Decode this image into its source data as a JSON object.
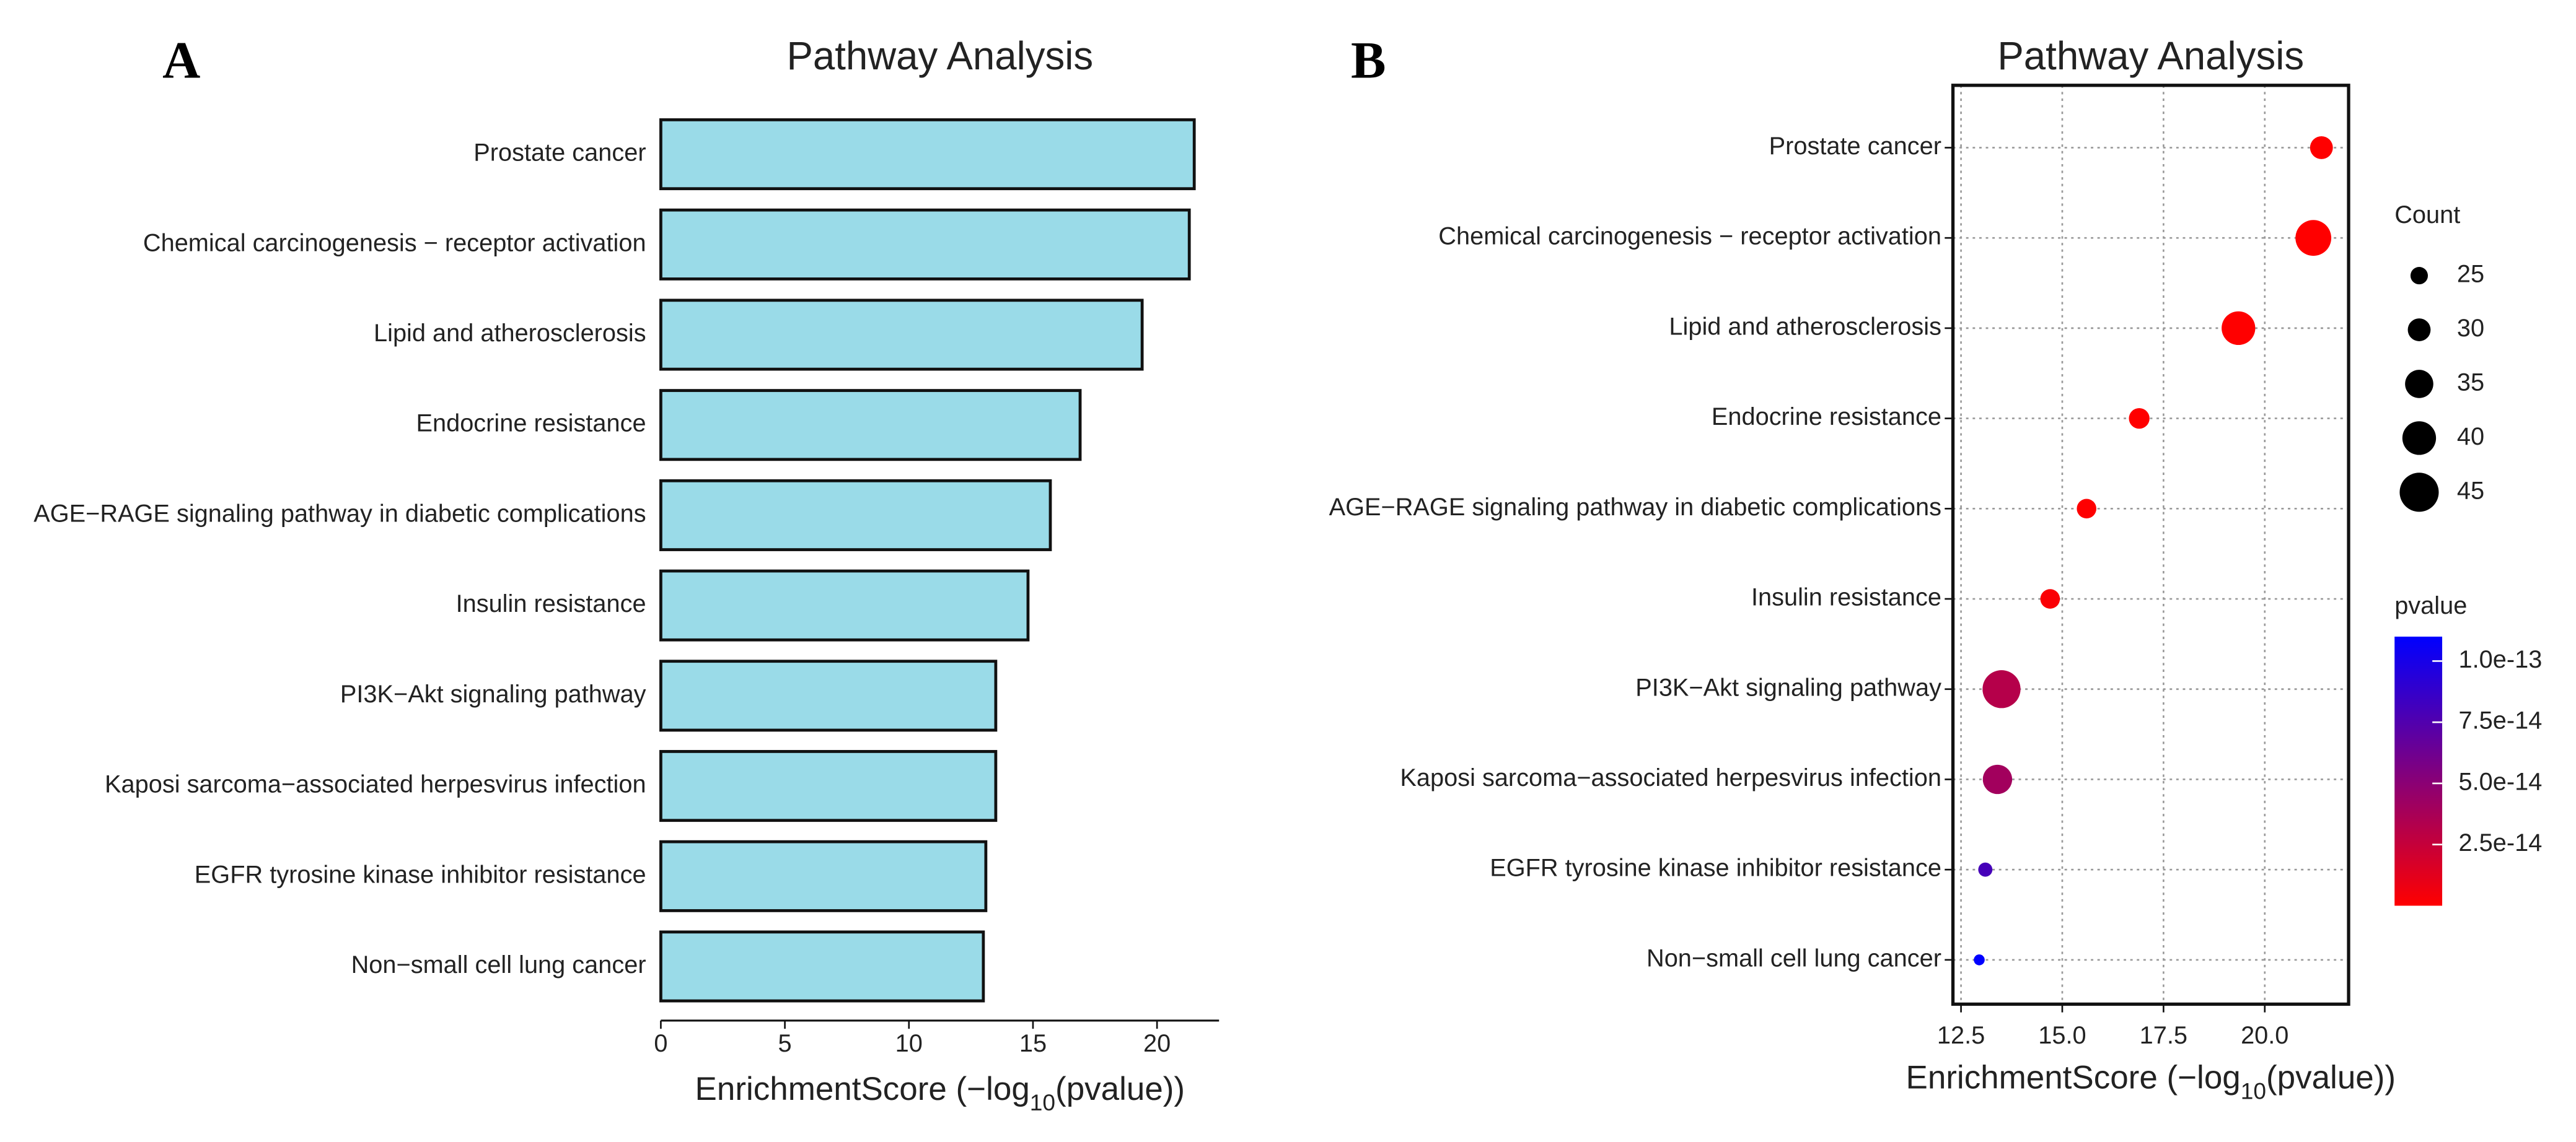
{
  "chart_data": [
    {
      "type": "bar",
      "orientation": "horizontal",
      "panel_label": "A",
      "title": "Pathway Analysis",
      "xlabel": "EnrichmentScore (−log",
      "xlabel_sub": "10",
      "xlabel_end": "(pvalue))",
      "categories": [
        "Prostate cancer",
        "Chemical carcinogenesis − receptor activation",
        "Lipid and atherosclerosis",
        "Endocrine resistance",
        "AGE−RAGE signaling pathway in diabetic complications",
        "Insulin resistance",
        "PI3K−Akt signaling pathway",
        "Kaposi sarcoma−associated herpesvirus infection",
        "EGFR tyrosine kinase inhibitor resistance",
        "Non−small cell lung cancer"
      ],
      "values": [
        21.5,
        21.3,
        19.4,
        16.9,
        15.7,
        14.8,
        13.5,
        13.5,
        13.1,
        13.0
      ],
      "color": "#9adbe8",
      "xlim": [
        0,
        22.5
      ],
      "xticks": [
        0,
        5,
        10,
        15,
        20
      ]
    },
    {
      "type": "scatter",
      "panel_label": "B",
      "title": "Pathway Analysis",
      "xlabel": "EnrichmentScore (−log",
      "xlabel_sub": "10",
      "xlabel_end": "(pvalue))",
      "categories": [
        "Prostate cancer",
        "Chemical carcinogenesis − receptor activation",
        "Lipid and atherosclerosis",
        "Endocrine resistance",
        "AGE−RAGE signaling pathway in diabetic complications",
        "Insulin resistance",
        "PI3K−Akt signaling pathway",
        "Kaposi sarcoma−associated herpesvirus infection",
        "EGFR tyrosine kinase inhibitor resistance",
        "Non−small cell lung cancer"
      ],
      "values": [
        21.4,
        21.2,
        19.35,
        16.9,
        15.6,
        14.7,
        13.5,
        13.4,
        13.1,
        12.95
      ],
      "size": [
        30,
        42,
        40,
        28,
        27,
        27,
        44,
        36,
        22,
        19
      ],
      "pvalue": [
        4e-22,
        6e-22,
        4.5e-20,
        1.2e-17,
        2.5e-16,
        2e-15,
        3.2e-14,
        4e-14,
        8e-14,
        1.1e-13
      ],
      "xlim": [
        12.3,
        22.07
      ],
      "xticks": [
        12.5,
        {
          "value": 15,
          "label": "15.0"
        },
        17.5,
        {
          "value": 20,
          "label": "20.0"
        }
      ],
      "grid": true,
      "size_legend_title": "Count",
      "size_legend": [
        25,
        30,
        35,
        40,
        45
      ],
      "color_legend_title": "pvalue",
      "color_low": "#ff0000",
      "color_high": "#0000ff",
      "colorlim": [
        0,
        1.1e-13
      ],
      "color_ticks": [
        {
          "value": 1e-13,
          "label": "1.0e-13"
        },
        {
          "value": 7.5e-14,
          "label": "7.5e-14"
        },
        {
          "value": 5e-14,
          "label": "5.0e-14"
        },
        {
          "value": 2.5e-14,
          "label": "2.5e-14"
        }
      ]
    }
  ]
}
